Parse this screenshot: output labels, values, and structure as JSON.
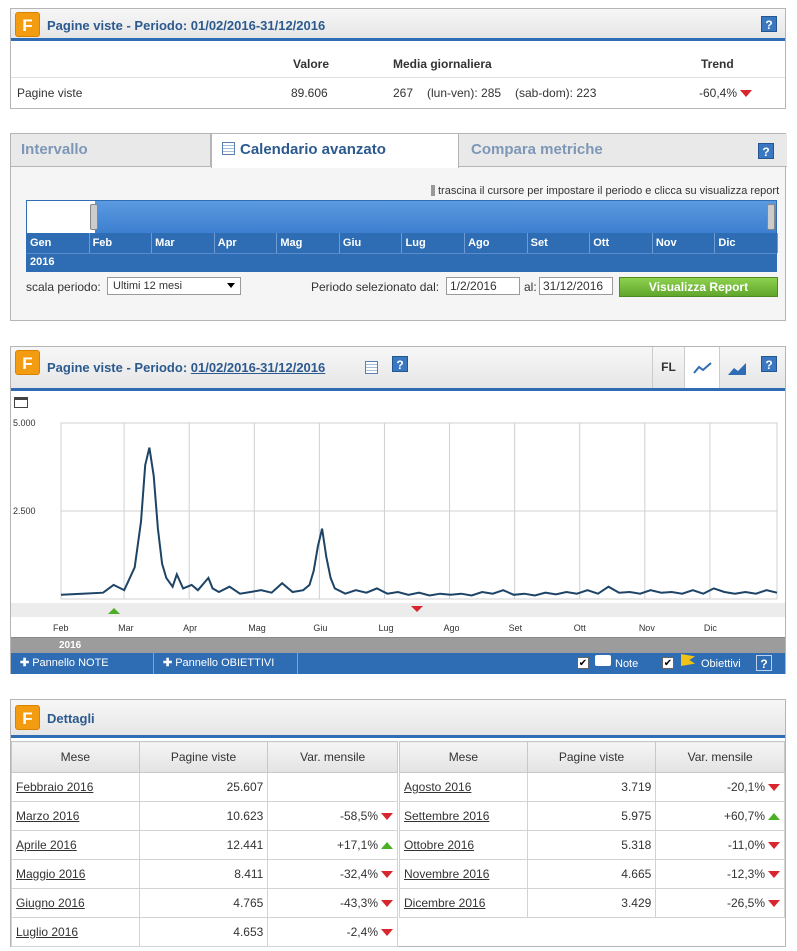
{
  "summary": {
    "title": "Pagine viste - Periodo: 01/02/2016-31/12/2016",
    "headers": {
      "valore": "Valore",
      "media": "Media giornaliera",
      "trend": "Trend"
    },
    "row": {
      "label": "Pagine viste",
      "valore": "89.606",
      "media": "267",
      "lunven": "(lun-ven): 285",
      "sabdom": "(sab-dom): 223",
      "trend": "-60,4%"
    }
  },
  "calendar": {
    "tabs": [
      "Intervallo",
      "Calendario avanzato",
      "Compara metriche"
    ],
    "hint": "trascina il cursore per impostare il periodo e clicca su visualizza report",
    "months": [
      "Gen",
      "Feb",
      "Mar",
      "Apr",
      "Mag",
      "Giu",
      "Lug",
      "Ago",
      "Set",
      "Ott",
      "Nov",
      "Dic"
    ],
    "year": "2016",
    "scale_label": "scala periodo:",
    "scale_value": "Ultimi 12 mesi",
    "period_label": "Periodo selezionato dal:",
    "from": "1/2/2016",
    "to_label": "al:",
    "to": "31/12/2016",
    "button": "Visualizza Report"
  },
  "chart_panel": {
    "title": "Pagine viste - Periodo:",
    "period": "01/02/2016-31/12/2016",
    "fl": "FL",
    "note_label": "Pannello NOTE",
    "obiettivi_label": "Pannello OBIETTIVI",
    "note_check": "Note",
    "obiettivi_check": "Obiettivi"
  },
  "chart_data": {
    "type": "line",
    "yticks": [
      "5.000",
      "2.500"
    ],
    "ylim": [
      0,
      5000
    ],
    "xticks": [
      "Feb",
      "Mar",
      "Apr",
      "Mag",
      "Giu",
      "Lug",
      "Ago",
      "Set",
      "Ott",
      "Nov",
      "Dic"
    ],
    "year": "2016",
    "grid": true,
    "series": [
      {
        "color": "#1d4466",
        "points": [
          [
            0,
            120
          ],
          [
            10,
            150
          ],
          [
            20,
            180
          ],
          [
            25,
            400
          ],
          [
            30,
            250
          ],
          [
            35,
            900
          ],
          [
            38,
            2200
          ],
          [
            40,
            3800
          ],
          [
            42,
            4300
          ],
          [
            44,
            3500
          ],
          [
            46,
            2000
          ],
          [
            48,
            1000
          ],
          [
            50,
            600
          ],
          [
            53,
            350
          ],
          [
            55,
            700
          ],
          [
            58,
            300
          ],
          [
            62,
            400
          ],
          [
            65,
            250
          ],
          [
            70,
            600
          ],
          [
            72,
            300
          ],
          [
            75,
            200
          ],
          [
            80,
            350
          ],
          [
            85,
            150
          ],
          [
            90,
            200
          ],
          [
            95,
            250
          ],
          [
            100,
            180
          ],
          [
            105,
            450
          ],
          [
            110,
            200
          ],
          [
            115,
            250
          ],
          [
            118,
            400
          ],
          [
            120,
            800
          ],
          [
            122,
            1500
          ],
          [
            124,
            2000
          ],
          [
            126,
            1200
          ],
          [
            128,
            600
          ],
          [
            130,
            300
          ],
          [
            135,
            150
          ],
          [
            140,
            250
          ],
          [
            145,
            180
          ],
          [
            150,
            300
          ],
          [
            155,
            150
          ],
          [
            160,
            200
          ],
          [
            165,
            120
          ],
          [
            170,
            180
          ],
          [
            175,
            100
          ],
          [
            180,
            150
          ],
          [
            185,
            120
          ],
          [
            190,
            150
          ],
          [
            195,
            100
          ],
          [
            200,
            200
          ],
          [
            205,
            150
          ],
          [
            210,
            250
          ],
          [
            215,
            120
          ],
          [
            220,
            150
          ],
          [
            225,
            100
          ],
          [
            230,
            180
          ],
          [
            235,
            130
          ],
          [
            240,
            200
          ],
          [
            245,
            150
          ],
          [
            250,
            250
          ],
          [
            255,
            150
          ],
          [
            260,
            350
          ],
          [
            265,
            180
          ],
          [
            270,
            200
          ],
          [
            275,
            150
          ],
          [
            280,
            250
          ],
          [
            285,
            180
          ],
          [
            290,
            200
          ],
          [
            295,
            150
          ],
          [
            300,
            250
          ],
          [
            305,
            150
          ],
          [
            310,
            300
          ],
          [
            315,
            200
          ],
          [
            320,
            150
          ],
          [
            325,
            200
          ],
          [
            330,
            150
          ],
          [
            335,
            250
          ],
          [
            340,
            180
          ]
        ]
      }
    ]
  },
  "details": {
    "title": "Dettagli",
    "headers": [
      "Mese",
      "Pagine viste",
      "Var. mensile"
    ],
    "left": [
      {
        "mese": "Febbraio 2016",
        "pv": "25.607",
        "var": "",
        "dir": ""
      },
      {
        "mese": "Marzo 2016",
        "pv": "10.623",
        "var": "-58,5%",
        "dir": "down"
      },
      {
        "mese": "Aprile 2016",
        "pv": "12.441",
        "var": "+17,1%",
        "dir": "up"
      },
      {
        "mese": "Maggio 2016",
        "pv": "8.411",
        "var": "-32,4%",
        "dir": "down"
      },
      {
        "mese": "Giugno 2016",
        "pv": "4.765",
        "var": "-43,3%",
        "dir": "down"
      },
      {
        "mese": "Luglio 2016",
        "pv": "4.653",
        "var": "-2,4%",
        "dir": "down"
      }
    ],
    "right": [
      {
        "mese": "Agosto 2016",
        "pv": "3.719",
        "var": "-20,1%",
        "dir": "down"
      },
      {
        "mese": "Settembre 2016",
        "pv": "5.975",
        "var": "+60,7%",
        "dir": "up"
      },
      {
        "mese": "Ottobre 2016",
        "pv": "5.318",
        "var": "-11,0%",
        "dir": "down"
      },
      {
        "mese": "Novembre 2016",
        "pv": "4.665",
        "var": "-12,3%",
        "dir": "down"
      },
      {
        "mese": "Dicembre 2016",
        "pv": "3.429",
        "var": "-26,5%",
        "dir": "down"
      }
    ]
  }
}
